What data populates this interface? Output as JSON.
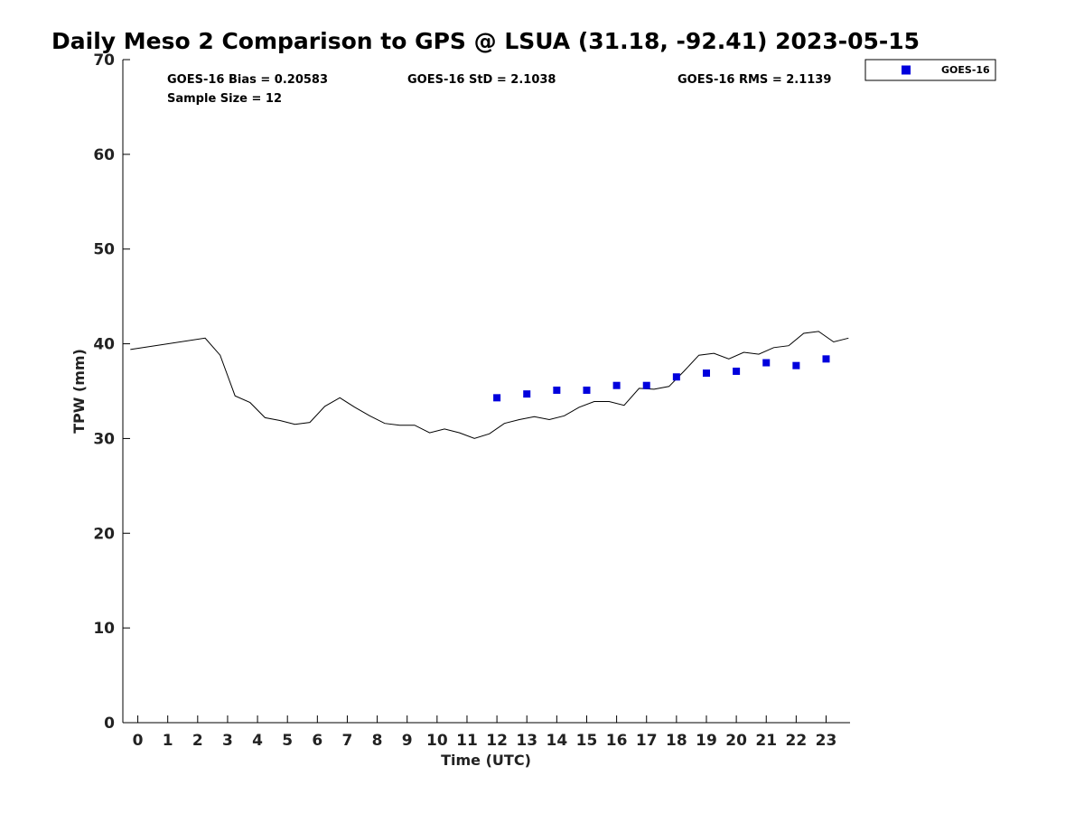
{
  "chart_data": {
    "type": "line",
    "title": "Daily Meso 2 Comparison to GPS @ LSUA (31.18, -92.41) 2023-05-15",
    "xlabel": "Time (UTC)",
    "ylabel": "TPW (mm)",
    "xlim": [
      -0.5,
      23.8
    ],
    "ylim": [
      0,
      70
    ],
    "x_ticks": [
      0,
      1,
      2,
      3,
      4,
      5,
      6,
      7,
      8,
      9,
      10,
      11,
      12,
      13,
      14,
      15,
      16,
      17,
      18,
      19,
      20,
      21,
      22,
      23
    ],
    "y_ticks": [
      0,
      10,
      20,
      30,
      40,
      50,
      60,
      70
    ],
    "grid": false,
    "legend": {
      "placement": "top-right outside",
      "entries": [
        "GOES-16"
      ]
    },
    "stats": {
      "bias": "GOES-16 Bias = 0.20583",
      "std": "GOES-16 StD = 2.1038",
      "rms": "GOES-16 RMS = 2.1139",
      "sample_size": "Sample Size = 12"
    },
    "series": [
      {
        "type": "line",
        "color": "#000000",
        "x": [
          -0.25,
          2.25,
          2.75,
          3.25,
          3.75,
          4.25,
          4.75,
          5.25,
          5.75,
          6.25,
          6.75,
          7.25,
          7.75,
          8.25,
          8.75,
          9.25,
          9.75,
          10.25,
          10.75,
          11.25,
          11.75,
          12.25,
          12.75,
          13.25,
          13.75,
          14.25,
          14.75,
          15.25,
          15.75,
          16.25,
          16.75,
          17.25,
          17.75,
          18.25,
          18.75,
          19.25,
          19.75,
          20.25,
          20.75,
          21.25,
          21.75,
          22.25,
          22.75,
          23.25,
          23.75
        ],
        "y": [
          39.4,
          40.6,
          38.8,
          34.5,
          33.8,
          32.2,
          31.9,
          31.5,
          31.7,
          33.4,
          34.3,
          33.3,
          32.4,
          31.6,
          31.4,
          31.4,
          30.6,
          31.0,
          30.6,
          30.0,
          30.5,
          31.6,
          32.0,
          32.3,
          32.0,
          32.4,
          33.3,
          33.9,
          33.9,
          33.5,
          35.3,
          35.2,
          35.5,
          37.1,
          38.8,
          39.0,
          38.4,
          39.1,
          38.9,
          39.6,
          39.8,
          41.1,
          41.3,
          40.2,
          40.6
        ]
      },
      {
        "name": "GOES-16",
        "type": "scatter",
        "marker": "square",
        "color": "#0000dd",
        "x": [
          12,
          13,
          14,
          15,
          16,
          17,
          18,
          19,
          20,
          21,
          22,
          23
        ],
        "y": [
          34.3,
          34.7,
          35.1,
          35.1,
          35.6,
          35.6,
          36.5,
          36.9,
          37.1,
          38.0,
          37.7,
          38.4
        ]
      }
    ]
  }
}
